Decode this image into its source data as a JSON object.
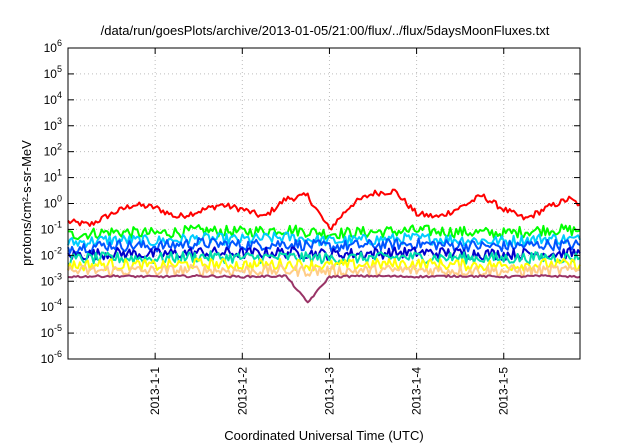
{
  "chart_data": {
    "type": "line",
    "title": "/data/run/goesPlots/archive/2013-01-05/21:00/flux/../flux/5daysMoonFluxes.txt",
    "xlabel": "Coordinated Universal Time (UTC)",
    "ylabel": "protons/cm²-s-sr-MeV",
    "yscale": "log",
    "ylim": [
      1e-06,
      1000000.0
    ],
    "xlim": [
      "2012-12-31T00:00",
      "2013-01-05T21:00"
    ],
    "grid": true,
    "y_ticks": [
      {
        "value": 1e-06,
        "base": "10",
        "exp": "-6"
      },
      {
        "value": 1e-05,
        "base": "10",
        "exp": "-5"
      },
      {
        "value": 0.0001,
        "base": "10",
        "exp": "-4"
      },
      {
        "value": 0.001,
        "base": "10",
        "exp": "-3"
      },
      {
        "value": 0.01,
        "base": "10",
        "exp": "-2"
      },
      {
        "value": 0.1,
        "base": "10",
        "exp": "-1"
      },
      {
        "value": 1.0,
        "base": "10",
        "exp": "0"
      },
      {
        "value": 10.0,
        "base": "10",
        "exp": "1"
      },
      {
        "value": 100.0,
        "base": "10",
        "exp": "2"
      },
      {
        "value": 1000.0,
        "base": "10",
        "exp": "3"
      },
      {
        "value": 10000.0,
        "base": "10",
        "exp": "4"
      },
      {
        "value": 100000.0,
        "base": "10",
        "exp": "5"
      },
      {
        "value": 1000000.0,
        "base": "10",
        "exp": "6"
      }
    ],
    "x_ticks": [
      {
        "value": "2013-01-01T00:00",
        "label": "2013-1-1"
      },
      {
        "value": "2013-01-02T00:00",
        "label": "2013-1-2"
      },
      {
        "value": "2013-01-03T00:00",
        "label": "2013-1-3"
      },
      {
        "value": "2013-01-04T00:00",
        "label": "2013-1-4"
      },
      {
        "value": "2013-01-05T00:00",
        "label": "2013-1-5"
      }
    ],
    "series": [
      {
        "color": "#ff0000",
        "x": [
          "2012-12-31T00:00",
          "2012-12-31T06:00",
          "2012-12-31T12:00",
          "2012-12-31T18:00",
          "2013-01-01T00:00",
          "2013-01-01T06:00",
          "2013-01-01T12:00",
          "2013-01-01T18:00",
          "2013-01-02T00:00",
          "2013-01-02T06:00",
          "2013-01-02T12:00",
          "2013-01-02T18:00",
          "2013-01-03T00:00",
          "2013-01-03T06:00",
          "2013-01-03T12:00",
          "2013-01-03T18:00",
          "2013-01-04T00:00",
          "2013-01-04T06:00",
          "2013-01-04T12:00",
          "2013-01-04T18:00",
          "2013-01-05T00:00",
          "2013-01-05T06:00",
          "2013-01-05T12:00",
          "2013-01-05T18:00",
          "2013-01-05T21:00"
        ],
        "values": [
          0.2,
          0.15,
          0.4,
          0.9,
          0.7,
          0.3,
          0.5,
          0.9,
          0.6,
          0.3,
          1.5,
          2.0,
          0.1,
          0.9,
          2.5,
          3.0,
          0.4,
          0.3,
          0.7,
          2.0,
          0.6,
          0.25,
          0.7,
          1.5,
          0.9
        ]
      },
      {
        "color": "#00ff00",
        "x": [
          "2012-12-31T00:00",
          "2012-12-31T12:00",
          "2013-01-01T00:00",
          "2013-01-01T12:00",
          "2013-01-02T00:00",
          "2013-01-02T12:00",
          "2013-01-03T00:00",
          "2013-01-03T12:00",
          "2013-01-04T00:00",
          "2013-01-04T12:00",
          "2013-01-05T00:00",
          "2013-01-05T12:00",
          "2013-01-05T21:00"
        ],
        "values": [
          0.06,
          0.08,
          0.07,
          0.09,
          0.08,
          0.1,
          0.07,
          0.08,
          0.09,
          0.08,
          0.07,
          0.1,
          0.09
        ]
      },
      {
        "color": "#00ccff",
        "x": [
          "2012-12-31T00:00",
          "2012-12-31T12:00",
          "2013-01-01T00:00",
          "2013-01-01T12:00",
          "2013-01-02T00:00",
          "2013-01-02T12:00",
          "2013-01-03T00:00",
          "2013-01-03T12:00",
          "2013-01-04T00:00",
          "2013-01-04T12:00",
          "2013-01-05T00:00",
          "2013-01-05T12:00",
          "2013-01-05T21:00"
        ],
        "values": [
          0.03,
          0.04,
          0.035,
          0.045,
          0.04,
          0.05,
          0.035,
          0.04,
          0.045,
          0.04,
          0.035,
          0.045,
          0.04
        ]
      },
      {
        "color": "#0055ff",
        "x": [
          "2012-12-31T00:00",
          "2012-12-31T12:00",
          "2013-01-01T00:00",
          "2013-01-01T12:00",
          "2013-01-02T00:00",
          "2013-01-02T12:00",
          "2013-01-03T00:00",
          "2013-01-03T12:00",
          "2013-01-04T00:00",
          "2013-01-04T12:00",
          "2013-01-05T00:00",
          "2013-01-05T12:00",
          "2013-01-05T21:00"
        ],
        "values": [
          0.02,
          0.025,
          0.022,
          0.03,
          0.025,
          0.028,
          0.022,
          0.025,
          0.028,
          0.024,
          0.022,
          0.026,
          0.025
        ]
      },
      {
        "color": "#0000cc",
        "x": [
          "2012-12-31T00:00",
          "2012-12-31T12:00",
          "2013-01-01T00:00",
          "2013-01-01T12:00",
          "2013-01-02T00:00",
          "2013-01-02T12:00",
          "2013-01-03T00:00",
          "2013-01-03T12:00",
          "2013-01-04T00:00",
          "2013-01-04T12:00",
          "2013-01-05T00:00",
          "2013-01-05T12:00",
          "2013-01-05T21:00"
        ],
        "values": [
          0.01,
          0.012,
          0.011,
          0.013,
          0.012,
          0.013,
          0.011,
          0.012,
          0.013,
          0.012,
          0.011,
          0.012,
          0.012
        ]
      },
      {
        "color": "#00ddaa",
        "x": [
          "2012-12-31T00:00",
          "2012-12-31T12:00",
          "2013-01-01T00:00",
          "2013-01-01T12:00",
          "2013-01-02T00:00",
          "2013-01-02T12:00",
          "2013-01-03T00:00",
          "2013-01-03T12:00",
          "2013-01-04T00:00",
          "2013-01-04T12:00",
          "2013-01-05T00:00",
          "2013-01-05T12:00",
          "2013-01-05T21:00"
        ],
        "values": [
          0.007,
          0.008,
          0.0075,
          0.009,
          0.008,
          0.0085,
          0.0075,
          0.008,
          0.0085,
          0.008,
          0.0075,
          0.0085,
          0.008
        ]
      },
      {
        "color": "#ffff00",
        "x": [
          "2012-12-31T00:00",
          "2012-12-31T12:00",
          "2013-01-01T00:00",
          "2013-01-01T12:00",
          "2013-01-02T00:00",
          "2013-01-02T12:00",
          "2013-01-03T00:00",
          "2013-01-03T12:00",
          "2013-01-04T00:00",
          "2013-01-04T12:00",
          "2013-01-05T00:00",
          "2013-01-05T12:00",
          "2013-01-05T21:00"
        ],
        "values": [
          0.004,
          0.0045,
          0.004,
          0.0048,
          0.0042,
          0.0046,
          0.004,
          0.0045,
          0.0047,
          0.0043,
          0.004,
          0.0046,
          0.0044
        ]
      },
      {
        "color": "#ffcc88",
        "x": [
          "2012-12-31T00:00",
          "2012-12-31T12:00",
          "2013-01-01T00:00",
          "2013-01-01T12:00",
          "2013-01-02T00:00",
          "2013-01-02T12:00",
          "2013-01-03T00:00",
          "2013-01-03T12:00",
          "2013-01-04T00:00",
          "2013-01-04T12:00",
          "2013-01-05T00:00",
          "2013-01-05T12:00",
          "2013-01-05T21:00"
        ],
        "values": [
          0.0025,
          0.0026,
          0.0025,
          0.0027,
          0.0026,
          0.0026,
          0.0025,
          0.0026,
          0.0027,
          0.0026,
          0.0025,
          0.0026,
          0.0026
        ]
      },
      {
        "color": "#993366",
        "x": [
          "2012-12-31T00:00",
          "2012-12-31T12:00",
          "2013-01-01T00:00",
          "2013-01-01T12:00",
          "2013-01-02T00:00",
          "2013-01-02T12:00",
          "2013-01-02T18:00",
          "2013-01-03T00:00",
          "2013-01-03T12:00",
          "2013-01-04T00:00",
          "2013-01-04T12:00",
          "2013-01-05T00:00",
          "2013-01-05T12:00",
          "2013-01-05T21:00"
        ],
        "values": [
          0.0015,
          0.0016,
          0.0015,
          0.0016,
          0.0015,
          0.0016,
          0.00015,
          0.0015,
          0.0016,
          0.0015,
          0.0016,
          0.0015,
          0.0016,
          0.0015
        ]
      }
    ]
  }
}
